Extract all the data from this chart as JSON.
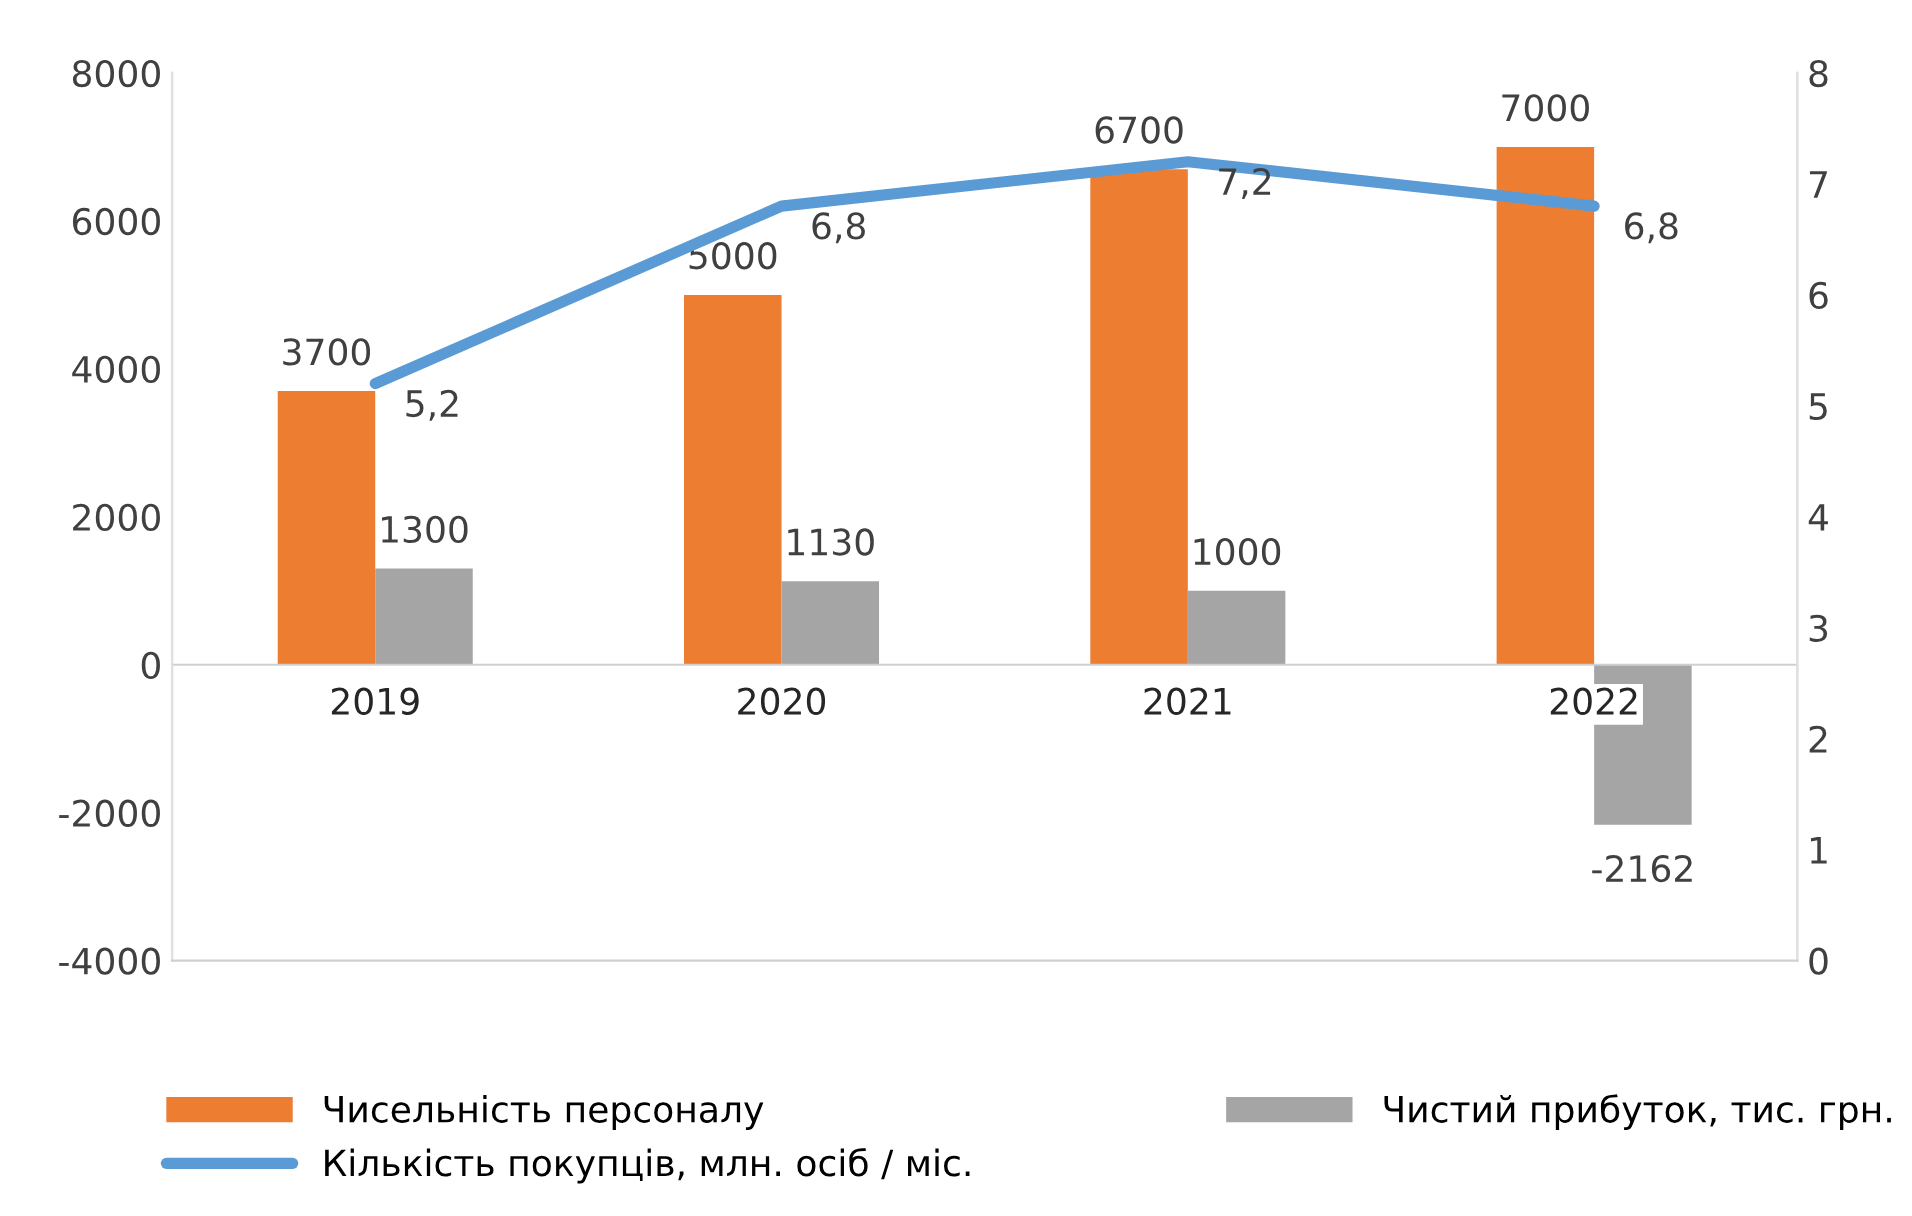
{
  "chart_data": {
    "type": "bar",
    "categories": [
      "2019",
      "2020",
      "2021",
      "2022"
    ],
    "series": [
      {
        "name": "Чисельність персоналу",
        "color": "#ed7d31",
        "values": [
          3700,
          5000,
          6700,
          7000
        ]
      },
      {
        "name": "Чистий прибуток, тис. грн.",
        "color": "#a5a5a5",
        "values": [
          1300,
          1130,
          1000,
          -2162
        ]
      },
      {
        "name": "Кількість покупців, млн. осіб / міс.",
        "color": "#5b9bd5",
        "type": "line",
        "axis": "y2",
        "values": [
          5.2,
          6.8,
          7.2,
          6.8
        ],
        "value_labels": [
          "5,2",
          "6,8",
          "7,2",
          "6,8"
        ]
      }
    ],
    "ylim": [
      -4000,
      8000
    ],
    "yticks": [
      -4000,
      -2000,
      0,
      2000,
      4000,
      6000,
      8000
    ],
    "y2lim": [
      0,
      8
    ],
    "y2ticks": [
      0,
      1,
      2,
      3,
      4,
      5,
      6,
      7,
      8
    ],
    "data_labels": true,
    "grid": false,
    "legend": "bottom",
    "marker": "none",
    "line_style": "solid"
  }
}
